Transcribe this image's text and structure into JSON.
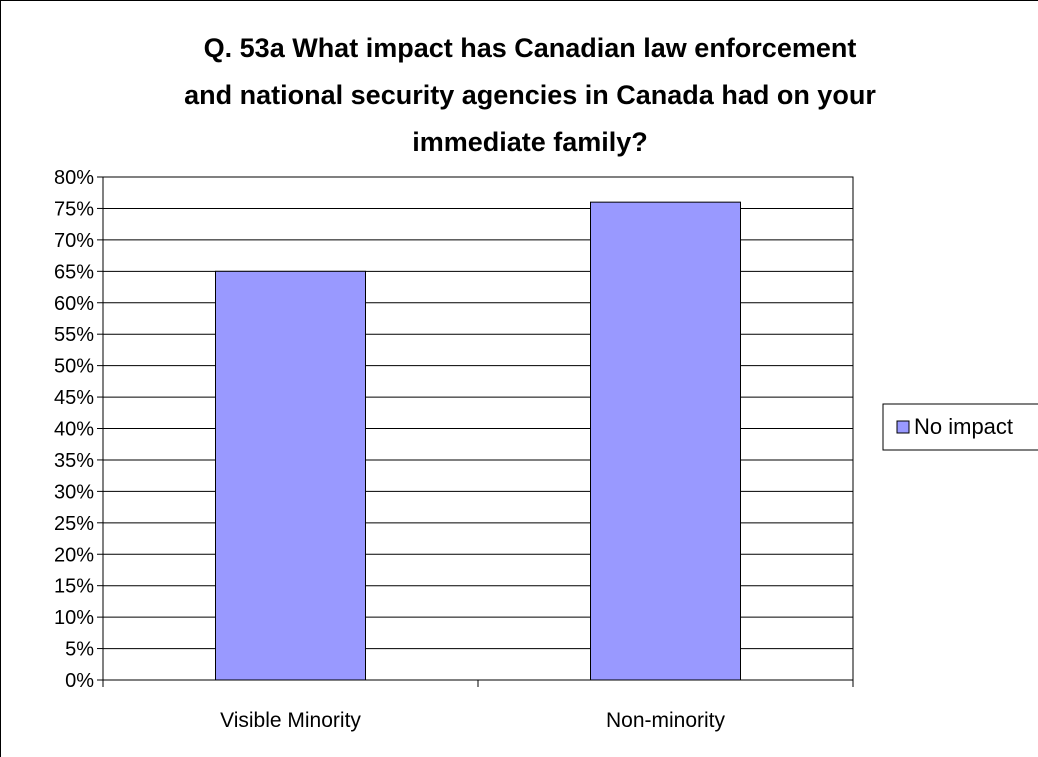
{
  "chart_data": {
    "type": "bar",
    "title": "Q. 53a What impact has Canadian law enforcement and national security agencies in Canada had on your immediate family?",
    "title_lines": [
      "Q. 53a What impact has Canadian law enforcement",
      "and national security agencies in Canada had on your",
      "immediate family?"
    ],
    "categories": [
      "Visible Minority",
      "Non-minority"
    ],
    "series": [
      {
        "name": "No impact",
        "values": [
          65,
          76
        ],
        "color": "#9999ff"
      }
    ],
    "y_tick_labels": [
      "0%",
      "5%",
      "10%",
      "15%",
      "20%",
      "25%",
      "30%",
      "35%",
      "40%",
      "45%",
      "50%",
      "55%",
      "60%",
      "65%",
      "70%",
      "75%",
      "80%"
    ],
    "ylim": [
      0,
      80
    ],
    "y_step": 5,
    "grid": true,
    "legend": "right",
    "xlabel": "",
    "ylabel": ""
  }
}
